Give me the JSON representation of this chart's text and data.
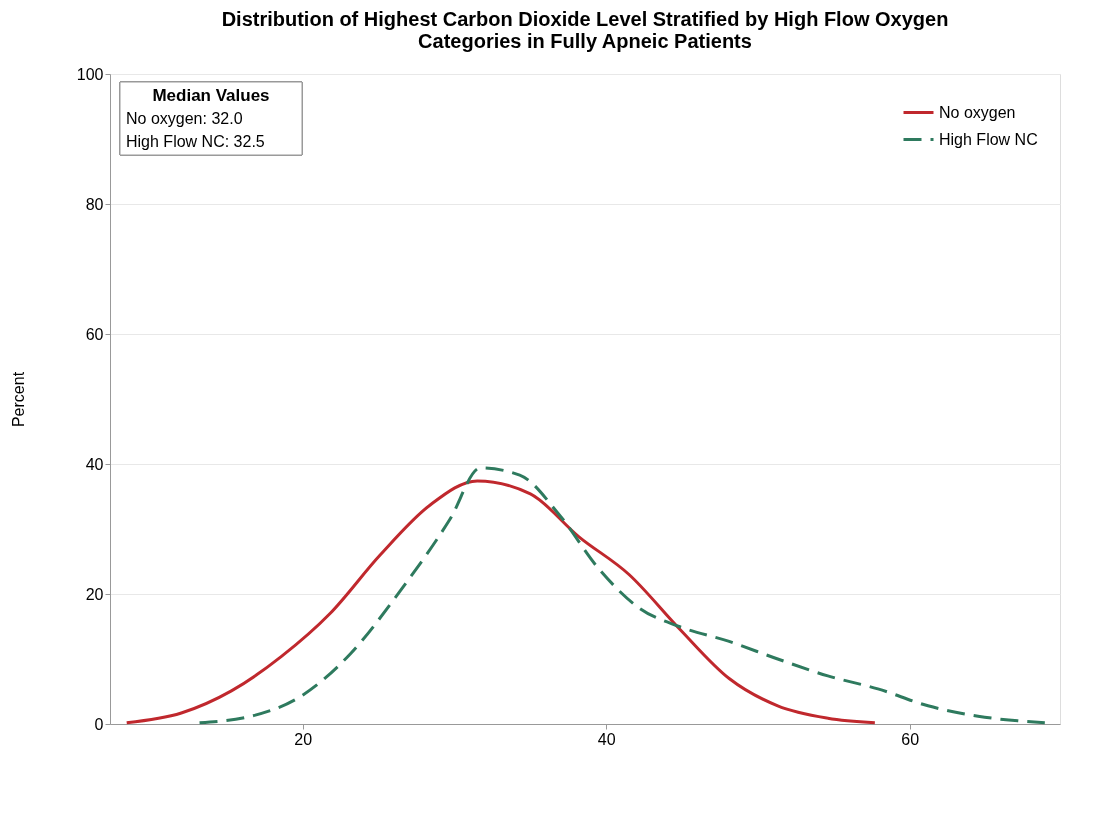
{
  "chart_data": {
    "type": "line",
    "title": "Distribution of Highest Carbon Dioxide Level Stratified by High Flow Oxygen\nCategories in Fully Apneic Patients",
    "ylabel": "Percent",
    "xlim": [
      7.3,
      69.9
    ],
    "xticks": [
      20,
      40,
      60
    ],
    "ylim": [
      0,
      100
    ],
    "yticks": [
      0,
      20,
      40,
      60,
      80,
      100
    ],
    "grid": "y",
    "legend": "top right",
    "marker": "none",
    "annotations": [
      "Median Values",
      "No oxygen: 32.0",
      "High Flow NC: 32.5"
    ],
    "series": [
      {
        "name": "No oxygen",
        "color": "#c0282d",
        "line_style": "solid",
        "x": [
          8.4,
          12.0,
          15.3,
          18.6,
          21.8,
          25.1,
          28.4,
          31.5,
          35.0,
          38.2,
          41.5,
          44.8,
          48.1,
          51.3,
          54.6,
          57.7
        ],
        "values": [
          0.2,
          1.7,
          5.1,
          10.4,
          17.0,
          26.0,
          33.7,
          37.4,
          35.4,
          28.8,
          23.0,
          14.7,
          7.0,
          2.8,
          0.9,
          0.2
        ]
      },
      {
        "name": "High Flow NC",
        "color": "#2e7a5e",
        "line_style": "dashed",
        "x": [
          13.2,
          16.6,
          19.9,
          23.1,
          26.4,
          29.7,
          31.7,
          34.3,
          36.9,
          39.5,
          42.2,
          44.8,
          48.1,
          51.3,
          54.6,
          57.9,
          61.2,
          64.5,
          68.9
        ],
        "values": [
          0.2,
          1.2,
          4.3,
          10.7,
          20.4,
          31.5,
          39.4,
          38.3,
          32.2,
          23.9,
          17.8,
          15.0,
          12.7,
          10.0,
          7.4,
          5.4,
          2.8,
          1.2,
          0.2
        ]
      }
    ]
  }
}
